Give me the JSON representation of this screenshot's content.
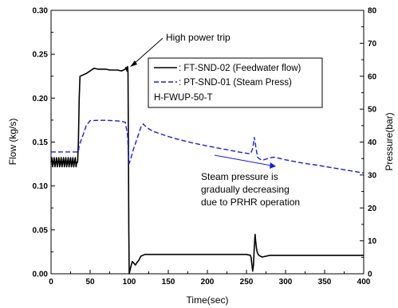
{
  "chart_data": {
    "type": "line",
    "xlabel": "Time(sec)",
    "ylabel_left": "Flow (kg/s)",
    "ylabel_right": "Pressure(bar)",
    "xlim": [
      0,
      400
    ],
    "ylim_left": [
      0,
      0.3
    ],
    "ylim_right": [
      0,
      80
    ],
    "x_ticks": [
      0,
      50,
      100,
      150,
      200,
      250,
      300,
      350,
      400
    ],
    "y_left_ticks": [
      "0.00",
      "0.05",
      "0.10",
      "0.15",
      "0.20",
      "0.25",
      "0.30"
    ],
    "y_right_ticks": [
      "0",
      "10",
      "20",
      "30",
      "40",
      "50",
      "60",
      "70",
      "80"
    ],
    "grid": false,
    "legend_position": "upper-right",
    "legend": {
      "entries": [
        ": FT-SND-02 (Feedwater flow)",
        ": PT-SND-01 (Steam Press)"
      ],
      "case_label": "H-FWUP-50-T"
    },
    "annotations": {
      "trip": "High power trip",
      "steam_line1": "Steam pressure is",
      "steam_line2": "gradually decreasing",
      "steam_line3": "due to PRHR operation"
    },
    "series": [
      {
        "name": "FT-SND-02 (Feedwater flow)",
        "axis": "left",
        "color": "#000000",
        "style": "solid",
        "x": [
          0,
          34,
          35,
          36,
          37,
          45,
          50,
          55,
          60,
          65,
          70,
          75,
          80,
          85,
          90,
          95,
          96,
          97,
          98,
          98.5,
          99,
          99.5,
          100,
          102,
          104,
          106,
          108,
          110,
          112,
          115,
          120,
          130,
          150,
          200,
          240,
          250,
          255,
          256,
          257,
          258,
          259,
          260,
          261,
          262,
          263,
          264,
          265,
          266,
          268,
          270,
          280,
          300,
          350,
          400
        ],
        "y": [
          0.127,
          0.127,
          0.15,
          0.2,
          0.225,
          0.228,
          0.231,
          0.234,
          0.233,
          0.233,
          0.233,
          0.232,
          0.232,
          0.232,
          0.231,
          0.233,
          0.235,
          0.231,
          0.236,
          0.228,
          0.15,
          0.05,
          0.0,
          0.008,
          0.014,
          0.012,
          0.01,
          0.013,
          0.015,
          0.02,
          0.022,
          0.022,
          0.022,
          0.022,
          0.022,
          0.022,
          0.021,
          0.018,
          0.01,
          0.003,
          0.01,
          0.03,
          0.045,
          0.035,
          0.028,
          0.024,
          0.022,
          0.021,
          0.02,
          0.019,
          0.021,
          0.021,
          0.021,
          0.021
        ]
      },
      {
        "name": "PT-SND-01 (Steam Press)",
        "axis": "right",
        "color": "#1a1ae6",
        "style": "dashed",
        "x": [
          0,
          35,
          36,
          40,
          45,
          50,
          60,
          70,
          80,
          90,
          95,
          98,
          99,
          100,
          102,
          105,
          110,
          115,
          118,
          120,
          125,
          130,
          140,
          150,
          160,
          180,
          200,
          220,
          240,
          250,
          255,
          258,
          260,
          262,
          264,
          266,
          270,
          275,
          280,
          285,
          290,
          300,
          320,
          340,
          360,
          380,
          400
        ],
        "y": [
          37.0,
          37.0,
          39.0,
          41.5,
          45.0,
          46.5,
          46.6,
          46.6,
          46.5,
          46.3,
          46.0,
          42.0,
          35.5,
          33.5,
          35.0,
          37.5,
          41.0,
          44.5,
          45.5,
          45.0,
          44.0,
          43.3,
          42.5,
          41.7,
          41.0,
          39.8,
          38.8,
          37.9,
          37.0,
          36.6,
          36.4,
          38.0,
          41.5,
          38.5,
          35.5,
          35.0,
          34.5,
          34.8,
          35.2,
          35.4,
          35.2,
          34.6,
          33.7,
          33.0,
          32.2,
          31.4,
          30.6
        ]
      }
    ]
  }
}
